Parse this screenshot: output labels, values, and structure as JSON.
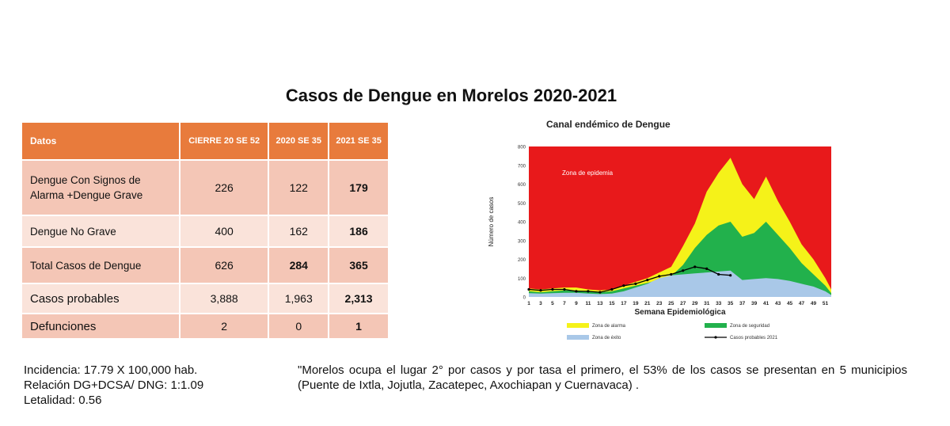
{
  "title": "Casos de Dengue en Morelos 2020-2021",
  "table": {
    "headers": [
      "Datos",
      "CIERRE 20 SE 52",
      "2020 SE 35",
      "2021 SE 35"
    ],
    "rows": [
      {
        "label": "Dengue Con Signos de Alarma +Dengue Grave",
        "cierre20": "226",
        "y2020": "122",
        "y2021": "179"
      },
      {
        "label": "Dengue No Grave",
        "cierre20": "400",
        "y2020": "162",
        "y2021": "186"
      },
      {
        "label": "Total  Casos de Dengue",
        "cierre20": "626",
        "y2020": "284",
        "y2021": "365"
      },
      {
        "label": "Casos probables",
        "cierre20": "3,888",
        "y2020": "1,963",
        "y2021": "2,313"
      },
      {
        "label": "Defunciones",
        "cierre20": "2",
        "y2020": "0",
        "y2021": "1"
      }
    ]
  },
  "notes": {
    "incidencia": "Incidencia: 17.79 X 100,000 hab.",
    "relacion": "Relación DG+DCSA/ DNG: 1:1.09",
    "letalidad": "Letalidad: 0.56",
    "quote": "\"Morelos ocupa el lugar 2° por  casos y por tasa el primero, el 53% de los casos se presentan en 5 municipios (Puente de Ixtla, Jojutla, Zacatepec, Axochiapan y Cuernavaca) ."
  },
  "chart_data": {
    "type": "area",
    "title": "Canal endémico de Dengue",
    "xlabel": "Semana Epidemiológica",
    "ylabel": "Número de casos",
    "ylim": [
      0,
      800
    ],
    "yticks": [
      0,
      100,
      200,
      300,
      400,
      500,
      600,
      700,
      800
    ],
    "xticks": [
      "1",
      "3",
      "5",
      "7",
      "9",
      "11",
      "13",
      "15",
      "17",
      "19",
      "21",
      "23",
      "25",
      "27",
      "29",
      "31",
      "33",
      "35",
      "37",
      "39",
      "41",
      "43",
      "45",
      "47",
      "49",
      "51"
    ],
    "weeks": [
      1,
      3,
      5,
      7,
      9,
      11,
      13,
      15,
      17,
      19,
      21,
      23,
      25,
      27,
      29,
      31,
      33,
      35,
      37,
      39,
      41,
      43,
      45,
      47,
      49,
      51,
      52
    ],
    "annotation": "Zona de epidemia",
    "colors": {
      "epidemia": "#e8191b",
      "alarma": "#f5f219",
      "seguridad": "#22b14c",
      "exito": "#a9c8e8",
      "probables": "#000000"
    },
    "series": [
      {
        "name": "Zona de alarma",
        "values": [
          45,
          40,
          45,
          50,
          50,
          40,
          35,
          40,
          60,
          80,
          100,
          130,
          160,
          270,
          390,
          560,
          660,
          740,
          600,
          520,
          640,
          510,
          400,
          280,
          200,
          100,
          40
        ]
      },
      {
        "name": "Zona de seguridad",
        "values": [
          30,
          25,
          30,
          35,
          35,
          30,
          25,
          30,
          45,
          60,
          75,
          90,
          110,
          170,
          260,
          330,
          380,
          400,
          320,
          340,
          400,
          330,
          260,
          180,
          120,
          60,
          20
        ]
      },
      {
        "name": "Zona de éxito",
        "values": [
          20,
          18,
          20,
          22,
          22,
          18,
          15,
          18,
          30,
          50,
          70,
          100,
          115,
          120,
          125,
          130,
          135,
          140,
          90,
          95,
          100,
          95,
          85,
          70,
          55,
          30,
          10
        ]
      },
      {
        "name": "Casos probables 2021",
        "x": [
          1,
          3,
          5,
          7,
          9,
          11,
          13,
          15,
          17,
          19,
          21,
          23,
          25,
          27,
          29,
          31,
          33,
          35
        ],
        "values": [
          40,
          35,
          40,
          40,
          30,
          30,
          25,
          40,
          60,
          70,
          90,
          110,
          120,
          140,
          160,
          150,
          120,
          115
        ]
      }
    ]
  }
}
